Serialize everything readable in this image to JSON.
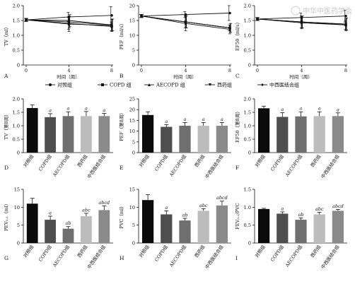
{
  "watermark": "中华中医药学会",
  "common": {
    "x_tick_labels": [
      "0",
      "4",
      "8"
    ],
    "line_xlabel": "时间（周）",
    "group_names": [
      "对照组",
      "COPD组",
      "AECOPD组",
      "西药组",
      "中西医结合组"
    ],
    "bar_colors": [
      "#0b0b0b",
      "#4e4e4e",
      "#6f6f6f",
      "#bcbcbc",
      "#8a8a8a"
    ]
  },
  "legend": {
    "items": [
      {
        "label": "对照组",
        "marker": "circle"
      },
      {
        "label": "COPD 组",
        "marker": "square"
      },
      {
        "label": "AECOPD 组",
        "marker": "triangle"
      },
      {
        "label": "西药组",
        "marker": "triangle-down"
      },
      {
        "label": "中西医结合组",
        "marker": "diamond"
      }
    ]
  },
  "chart_data": [
    {
      "panel": "A",
      "type": "line",
      "ylabel": "TV（ml）",
      "xlabel": "时间（周）",
      "x": [
        0,
        4,
        8
      ],
      "ylim": [
        0,
        2
      ],
      "yticks": [
        "0",
        "0.5",
        "1.0",
        "1.5",
        "2.0"
      ],
      "series": [
        {
          "name": "对照组",
          "values": [
            1.52,
            1.62,
            1.67
          ],
          "err": [
            0.05,
            0.15,
            0.3
          ]
        },
        {
          "name": "COPD组",
          "values": [
            1.52,
            1.4,
            1.3
          ],
          "err": [
            0.05,
            0.2,
            0.15
          ]
        },
        {
          "name": "AECOPD组",
          "values": [
            1.52,
            1.38,
            1.33
          ],
          "err": [
            0.05,
            0.25,
            0.2
          ]
        },
        {
          "name": "西药组",
          "values": [
            1.52,
            1.45,
            1.35
          ],
          "err": [
            0.05,
            0.2,
            0.2
          ]
        },
        {
          "name": "中西医结合组",
          "values": [
            1.52,
            1.5,
            1.35
          ],
          "err": [
            0.05,
            0.2,
            0.2
          ]
        }
      ]
    },
    {
      "panel": "B",
      "type": "line",
      "ylabel": "PEF（ml/s）",
      "xlabel": "时间（周）",
      "x": [
        0,
        4,
        8
      ],
      "ylim": [
        0,
        20
      ],
      "yticks": [
        "0",
        "5",
        "10",
        "15",
        "20"
      ],
      "series": [
        {
          "name": "对照组",
          "values": [
            16.5,
            17.0,
            17.5
          ],
          "err": [
            0.5,
            1.0,
            2.5
          ]
        },
        {
          "name": "COPD组",
          "values": [
            16.5,
            14.5,
            12.5
          ],
          "err": [
            0.5,
            2.0,
            1.0
          ]
        },
        {
          "name": "AECOPD组",
          "values": [
            16.5,
            14.0,
            12.0
          ],
          "err": [
            0.5,
            2.5,
            1.5
          ]
        },
        {
          "name": "西药组",
          "values": [
            16.5,
            14.5,
            12.5
          ],
          "err": [
            0.5,
            2.0,
            1.5
          ]
        },
        {
          "name": "中西医结合组",
          "values": [
            16.5,
            14.5,
            12.5
          ],
          "err": [
            0.5,
            2.0,
            1.5
          ]
        }
      ]
    },
    {
      "panel": "C",
      "type": "line",
      "ylabel": "EF50（ml/s）",
      "xlabel": "时间（周）",
      "x": [
        0,
        4,
        8
      ],
      "ylim": [
        0,
        2
      ],
      "yticks": [
        "0",
        "0.5",
        "1.0",
        "1.5",
        "2.0"
      ],
      "series": [
        {
          "name": "对照组",
          "values": [
            1.55,
            1.6,
            1.65
          ],
          "err": [
            0.05,
            0.15,
            0.2
          ]
        },
        {
          "name": "COPD组",
          "values": [
            1.55,
            1.45,
            1.35
          ],
          "err": [
            0.05,
            0.2,
            0.15
          ]
        },
        {
          "name": "AECOPD组",
          "values": [
            1.55,
            1.42,
            1.35
          ],
          "err": [
            0.05,
            0.2,
            0.2
          ]
        },
        {
          "name": "西药组",
          "values": [
            1.55,
            1.45,
            1.38
          ],
          "err": [
            0.05,
            0.2,
            0.2
          ]
        },
        {
          "name": "中西医结合组",
          "values": [
            1.55,
            1.45,
            1.38
          ],
          "err": [
            0.05,
            0.2,
            0.2
          ]
        }
      ]
    },
    {
      "panel": "D",
      "type": "bar",
      "ylabel": "TV（第8周）",
      "ylim": [
        0,
        2
      ],
      "yticks": [
        "0",
        "0.5",
        "1.0",
        "1.5",
        "2.0"
      ],
      "categories": [
        "对照组",
        "COPD组",
        "AECOPD组",
        "西药组",
        "中西医结合组"
      ],
      "values": [
        1.66,
        1.32,
        1.36,
        1.36,
        1.36
      ],
      "err": [
        0.12,
        0.13,
        0.16,
        0.17,
        0.1
      ],
      "annotations": [
        "",
        "a",
        "a",
        "a",
        "a"
      ]
    },
    {
      "panel": "E",
      "type": "bar",
      "ylabel": "PEF（第8周）",
      "ylim": [
        0,
        25
      ],
      "yticks": [
        "0",
        "5",
        "10",
        "15",
        "20",
        "25"
      ],
      "categories": [
        "对照组",
        "COPD组",
        "AECOPD组",
        "西药组",
        "中西医结合组"
      ],
      "values": [
        17.5,
        12.0,
        12.5,
        12.5,
        12.5
      ],
      "err": [
        1.5,
        1.0,
        1.5,
        1.5,
        1.5
      ],
      "annotations": [
        "",
        "a",
        "a",
        "a",
        "a"
      ]
    },
    {
      "panel": "F",
      "type": "bar",
      "ylabel": "EF50（第8周）",
      "ylim": [
        0,
        2
      ],
      "yticks": [
        "0",
        "0.5",
        "1.0",
        "1.5",
        "2.0"
      ],
      "categories": [
        "对照组",
        "COPD组",
        "AECOPD组",
        "西药组",
        "中西医结合组"
      ],
      "values": [
        1.65,
        1.33,
        1.35,
        1.36,
        1.36
      ],
      "err": [
        0.08,
        0.16,
        0.17,
        0.16,
        0.12
      ],
      "annotations": [
        "",
        "a",
        "a",
        "a",
        "a"
      ]
    },
    {
      "panel": "G",
      "type": "bar",
      "ylabel": "PEV₀.₁（ml）",
      "ylim": [
        0,
        15
      ],
      "yticks": [
        "0",
        "5",
        "10",
        "15"
      ],
      "categories": [
        "对照组",
        "COPD组",
        "AECOPD组",
        "西药组",
        "中西医结合组"
      ],
      "values": [
        11.0,
        6.5,
        4.0,
        7.5,
        9.2
      ],
      "err": [
        1.5,
        1.0,
        0.6,
        0.8,
        1.2
      ],
      "annotations": [
        "",
        "a",
        "ab",
        "abc",
        "abcd"
      ]
    },
    {
      "panel": "H",
      "type": "bar",
      "ylabel": "PVC（ml）",
      "ylim": [
        0,
        15
      ],
      "yticks": [
        "0",
        "5",
        "10",
        "15"
      ],
      "categories": [
        "对照组",
        "COPD组",
        "AECOPD组",
        "西药组",
        "中西医结合组"
      ],
      "values": [
        12.0,
        8.0,
        6.3,
        9.0,
        10.5
      ],
      "err": [
        1.5,
        1.0,
        0.6,
        0.6,
        1.2
      ],
      "annotations": [
        "",
        "a",
        "ab",
        "abc",
        "abcd"
      ]
    },
    {
      "panel": "I",
      "type": "bar",
      "ylabel": "FEV₀.₁/PVC",
      "ylim": [
        0,
        1.5
      ],
      "yticks": [
        "0",
        "0.5",
        "1.0",
        "1.5"
      ],
      "categories": [
        "对照组",
        "COPD组",
        "AECOPD组",
        "西药组",
        "中西医结合组"
      ],
      "values": [
        0.95,
        0.82,
        0.65,
        0.8,
        0.9
      ],
      "err": [
        0.02,
        0.05,
        0.05,
        0.06,
        0.04
      ],
      "annotations": [
        "",
        "a",
        "ab",
        "abc",
        "abcd"
      ]
    }
  ]
}
